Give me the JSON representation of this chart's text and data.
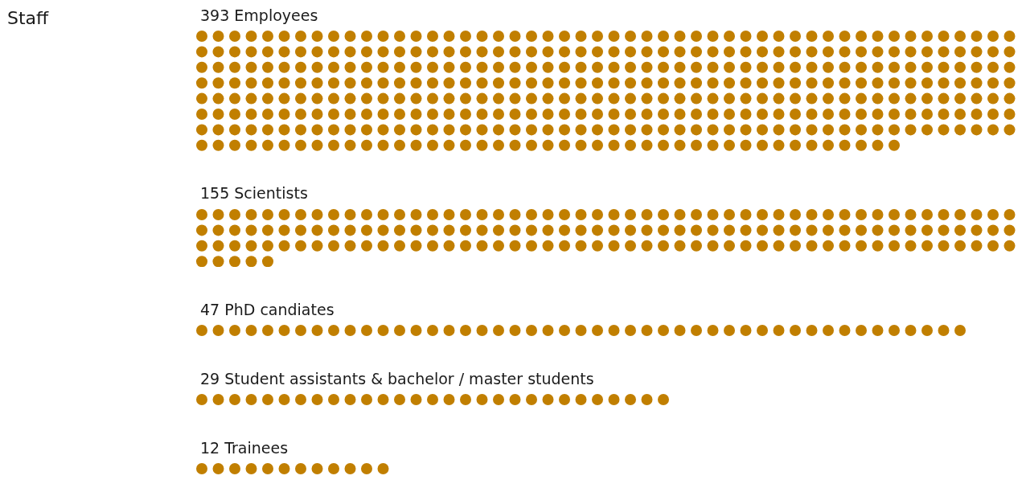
{
  "chart_data": {
    "type": "other",
    "title": "Staff",
    "categories": [
      "Employees",
      "Scientists",
      "PhD candiates",
      "Student assistants & bachelor / master students",
      "Trainees"
    ],
    "values": [
      393,
      155,
      47,
      29,
      12
    ],
    "data_labels": true,
    "color": "#c17f00"
  }
}
